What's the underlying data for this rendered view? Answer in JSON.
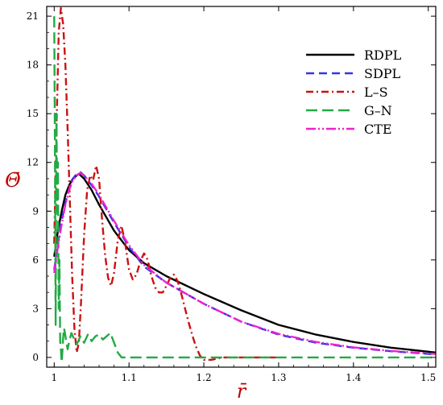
{
  "chart_data": {
    "type": "line",
    "xlabel": "r̄",
    "ylabel": "Θ̄",
    "label_color": "#c00000",
    "xlim": [
      0.99,
      1.51
    ],
    "ylim": [
      -0.6,
      21.6
    ],
    "x_ticks": [
      1,
      1.1,
      1.2,
      1.3,
      1.4,
      1.5
    ],
    "x_tick_labels": [
      "1",
      "1.1",
      "1.2",
      "1.3",
      "1.4",
      "1.5"
    ],
    "y_ticks": [
      0,
      3,
      6,
      9,
      12,
      15,
      18,
      21
    ],
    "y_tick_labels": [
      "0",
      "3",
      "6",
      "9",
      "12",
      "15",
      "18",
      "21"
    ],
    "grid": false,
    "legend_position": "top-right",
    "series": [
      {
        "name": "RDPL",
        "color": "#000000",
        "dash": "solid",
        "x": [
          1.0,
          1.005,
          1.01,
          1.015,
          1.02,
          1.025,
          1.03,
          1.033,
          1.04,
          1.05,
          1.06,
          1.07,
          1.08,
          1.1,
          1.12,
          1.15,
          1.2,
          1.25,
          1.3,
          1.35,
          1.4,
          1.45,
          1.5,
          1.51
        ],
        "y": [
          6.2,
          7.8,
          9.0,
          10.0,
          10.6,
          11.0,
          11.2,
          11.3,
          11.0,
          10.3,
          9.4,
          8.6,
          7.8,
          6.6,
          5.8,
          5.0,
          3.9,
          2.9,
          2.0,
          1.4,
          0.95,
          0.6,
          0.35,
          0.3
        ]
      },
      {
        "name": "SDPL",
        "color": "#3333ee",
        "dash": "10,6",
        "x": [
          1.0,
          1.005,
          1.01,
          1.015,
          1.02,
          1.025,
          1.03,
          1.035,
          1.04,
          1.05,
          1.06,
          1.08,
          1.1,
          1.12,
          1.15,
          1.2,
          1.25,
          1.3,
          1.35,
          1.4,
          1.45,
          1.5,
          1.51
        ],
        "y": [
          5.4,
          7.0,
          8.4,
          9.5,
          10.4,
          11.0,
          11.3,
          11.4,
          11.2,
          10.6,
          9.9,
          8.3,
          6.8,
          5.6,
          4.6,
          3.3,
          2.2,
          1.4,
          0.9,
          0.6,
          0.38,
          0.22,
          0.2
        ]
      },
      {
        "name": "L–S",
        "color": "#cc1111",
        "dash": "9,4,2,4",
        "x": [
          1.0,
          1.003,
          1.006,
          1.009,
          1.012,
          1.015,
          1.018,
          1.021,
          1.024,
          1.027,
          1.03,
          1.033,
          1.036,
          1.04,
          1.044,
          1.048,
          1.052,
          1.056,
          1.06,
          1.064,
          1.068,
          1.072,
          1.076,
          1.08,
          1.085,
          1.09,
          1.095,
          1.1,
          1.105,
          1.11,
          1.115,
          1.12,
          1.125,
          1.13,
          1.135,
          1.14,
          1.145,
          1.15,
          1.155,
          1.16,
          1.165,
          1.17,
          1.175,
          1.18,
          1.185,
          1.19,
          1.195,
          1.2,
          1.205,
          1.21,
          1.215,
          1.22,
          1.225,
          1.23,
          1.24,
          1.25,
          1.26,
          1.3
        ],
        "y": [
          7.0,
          14.0,
          20.0,
          21.5,
          20.5,
          18.0,
          14.0,
          9.5,
          5.0,
          1.8,
          0.3,
          0.9,
          3.5,
          7.5,
          10.3,
          11.2,
          10.9,
          11.8,
          11.0,
          8.5,
          6.3,
          4.9,
          4.4,
          5.2,
          7.2,
          8.1,
          7.0,
          5.4,
          4.8,
          5.1,
          5.9,
          6.4,
          6.0,
          5.0,
          4.3,
          4.0,
          4.0,
          4.4,
          4.9,
          5.1,
          4.7,
          3.9,
          3.0,
          2.1,
          1.3,
          0.6,
          0.1,
          -0.15,
          -0.15,
          -0.15,
          -0.1,
          -0.05,
          0.0,
          0.0,
          0.0,
          0.0,
          0.0,
          0.0
        ]
      },
      {
        "name": "G–N",
        "color": "#22aa44",
        "dash": "14,6",
        "x": [
          1.0,
          1.001,
          1.002,
          1.003,
          1.004,
          1.005,
          1.006,
          1.007,
          1.008,
          1.009,
          1.01,
          1.011,
          1.012,
          1.013,
          1.014,
          1.016,
          1.018,
          1.02,
          1.023,
          1.026,
          1.03,
          1.035,
          1.04,
          1.045,
          1.05,
          1.055,
          1.06,
          1.065,
          1.07,
          1.075,
          1.08,
          1.085,
          1.09,
          1.1,
          1.2,
          1.3,
          1.51
        ],
        "y": [
          21.0,
          13.0,
          2.0,
          15.0,
          9.0,
          12.0,
          3.0,
          6.0,
          1.0,
          0.5,
          -0.3,
          0.4,
          1.2,
          1.8,
          1.6,
          1.0,
          0.5,
          1.0,
          1.5,
          1.2,
          0.8,
          1.3,
          0.9,
          1.4,
          1.0,
          1.3,
          1.4,
          1.1,
          1.3,
          1.5,
          0.9,
          0.3,
          0.0,
          0.0,
          0.0,
          0.0,
          0.0
        ]
      },
      {
        "name": "CTE",
        "color": "#ee22cc",
        "dash": "12,3,2,3,2,3",
        "x": [
          1.0,
          1.005,
          1.01,
          1.015,
          1.02,
          1.025,
          1.03,
          1.035,
          1.04,
          1.05,
          1.06,
          1.08,
          1.1,
          1.12,
          1.15,
          1.2,
          1.25,
          1.3,
          1.35,
          1.4,
          1.45,
          1.5,
          1.51
        ],
        "y": [
          5.2,
          6.8,
          8.2,
          9.4,
          10.3,
          10.9,
          11.2,
          11.35,
          11.2,
          10.7,
          10.0,
          8.4,
          6.9,
          5.7,
          4.6,
          3.3,
          2.2,
          1.45,
          0.95,
          0.62,
          0.4,
          0.24,
          0.22
        ]
      }
    ]
  }
}
